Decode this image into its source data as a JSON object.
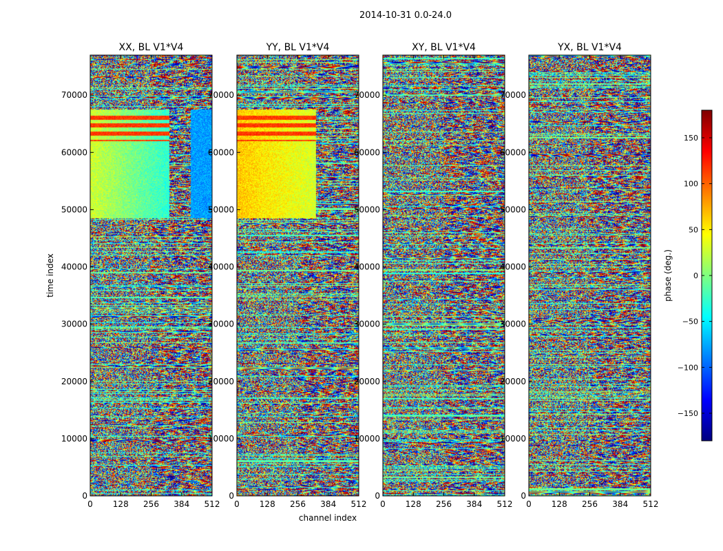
{
  "figure": {
    "suptitle": "2014-10-31 0.0-24.0",
    "xlabel": "channel index",
    "ylabel": "time index"
  },
  "chart_data": {
    "type": "heatmap",
    "panels": [
      {
        "title": "XX, BL V1*V4",
        "pol": "XX"
      },
      {
        "title": "YY, BL V1*V4",
        "pol": "YY"
      },
      {
        "title": "XY, BL V1*V4",
        "pol": "XY"
      },
      {
        "title": "YX, BL V1*V4",
        "pol": "YX"
      }
    ],
    "x": {
      "min": 0,
      "max": 512,
      "ticks": [
        0,
        128,
        256,
        384,
        512
      ],
      "tick_labels": [
        "0",
        "128",
        "256",
        "384",
        "512"
      ]
    },
    "y": {
      "min": 0,
      "max": 77000,
      "ticks": [
        0,
        10000,
        20000,
        30000,
        40000,
        50000,
        60000,
        70000
      ],
      "tick_labels": [
        "0",
        "10000",
        "20000",
        "30000",
        "40000",
        "50000",
        "60000",
        "70000"
      ]
    },
    "colorbar": {
      "label": "phase (deg.)",
      "min": -180,
      "max": 180,
      "ticks": [
        -150,
        -100,
        -50,
        0,
        50,
        100,
        150
      ],
      "tick_labels": [
        "−150",
        "−100",
        "−50",
        "0",
        "50",
        "100",
        "150"
      ],
      "colormap": "jet"
    },
    "colormap_stops": [
      "#00007f",
      "#0000ff",
      "#007fff",
      "#00ffff",
      "#7fff7f",
      "#ffff00",
      "#ff7f00",
      "#ff0000",
      "#7f0000"
    ]
  }
}
